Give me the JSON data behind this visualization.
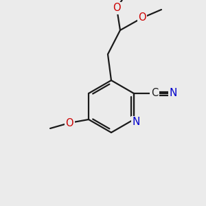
{
  "background_color": "#ebebeb",
  "bond_color": "#1a1a1a",
  "atom_colors": {
    "N": "#0000cc",
    "O": "#cc0000",
    "C": "#1a1a1a"
  },
  "figsize": [
    3.0,
    3.0
  ],
  "dpi": 100,
  "lw": 1.6,
  "fs": 10.5
}
